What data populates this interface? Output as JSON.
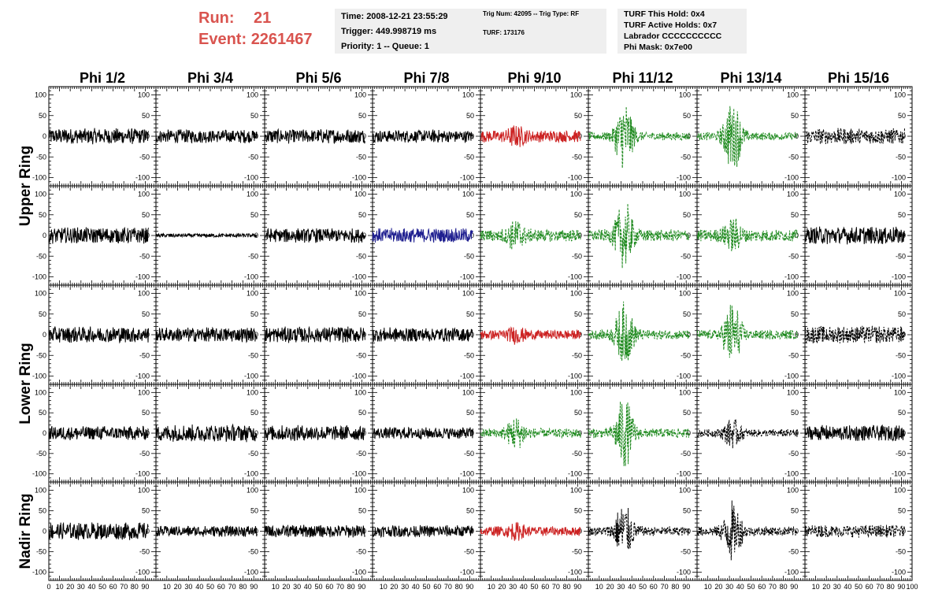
{
  "header": {
    "run_label": "Run:",
    "run_value": "21",
    "event_label": "Event:",
    "event_value": "2261467",
    "time": "Time: 2008-12-21 23:55:29",
    "trigger": "Trigger: 449.998719 ms",
    "priority": "Priority: 1 -- Queue: 1",
    "trig_num": "Trig Num: 42095 -- Trig Type: RF",
    "turf": "TURF: 173176",
    "turf_hold": "TURF This Hold: 0x4",
    "turf_active": "TURF Active Holds: 0x7",
    "labrador": "Labrador CCCCCCCCCC",
    "phi_mask": "Phi Mask: 0x7e00"
  },
  "colors": {
    "title_red": "#d9544f",
    "trace_black": "#000000",
    "trace_red": "#cc2222",
    "trace_blue": "#202090",
    "trace_green": "#1f8a1f",
    "info_bg": "#efefef"
  },
  "chart_data": {
    "type": "line",
    "columns": [
      "Phi 1/2",
      "Phi 3/4",
      "Phi 5/6",
      "Phi 7/8",
      "Phi 9/10",
      "Phi 11/12",
      "Phi 13/14",
      "Phi 15/16"
    ],
    "rows": [
      "Upper Ring",
      "Upper Ring",
      "Lower Ring",
      "Lower Ring",
      "Nadir Ring"
    ],
    "row_groups": [
      {
        "label": "Upper Ring",
        "rows": [
          0,
          1
        ]
      },
      {
        "label": "Lower Ring",
        "rows": [
          2,
          3
        ]
      },
      {
        "label": "Nadir Ring",
        "rows": [
          4
        ]
      }
    ],
    "xlim": [
      0,
      100
    ],
    "ylim": [
      -120,
      120
    ],
    "x_ticks": [
      0,
      10,
      20,
      30,
      40,
      50,
      60,
      70,
      80,
      90,
      100
    ],
    "x_tick_labels": [
      "0",
      "10",
      "20",
      "30",
      "40",
      "50",
      "60",
      "70",
      "80",
      "90",
      "100"
    ],
    "y_ticks": [
      -100,
      -50,
      0,
      50,
      100
    ],
    "y_tick_labels": [
      "-100",
      "-50",
      "0",
      "50",
      "100"
    ],
    "x_data_range": [
      0,
      93
    ],
    "panels": [
      [
        {
          "style": "black",
          "amp": 20,
          "pulse": 0,
          "center": 0
        },
        {
          "style": "black",
          "amp": 17,
          "pulse": 0,
          "center": 0
        },
        {
          "style": "black",
          "amp": 18,
          "pulse": 0,
          "center": 0
        },
        {
          "style": "black",
          "amp": 16,
          "pulse": 0,
          "center": 0
        },
        {
          "style": "red",
          "amp": 15,
          "pulse": 32,
          "center": 33
        },
        {
          "style": "green",
          "amp": 10,
          "pulse": 90,
          "center": 33
        },
        {
          "style": "green",
          "amp": 10,
          "pulse": 95,
          "center": 33
        },
        {
          "style": "black-dashed",
          "amp": 20,
          "pulse": 0,
          "center": 0
        }
      ],
      [
        {
          "style": "black",
          "amp": 20,
          "pulse": 0,
          "center": 0
        },
        {
          "style": "black",
          "amp": 5,
          "pulse": 0,
          "center": 0
        },
        {
          "style": "black",
          "amp": 18,
          "pulse": 0,
          "center": 0
        },
        {
          "style": "blue",
          "amp": 18,
          "pulse": 20,
          "center": 30
        },
        {
          "style": "green",
          "amp": 15,
          "pulse": 45,
          "center": 33
        },
        {
          "style": "green",
          "amp": 15,
          "pulse": 90,
          "center": 33
        },
        {
          "style": "green",
          "amp": 15,
          "pulse": 50,
          "center": 33
        },
        {
          "style": "black",
          "amp": 22,
          "pulse": 0,
          "center": 0
        }
      ],
      [
        {
          "style": "black",
          "amp": 20,
          "pulse": 0,
          "center": 0
        },
        {
          "style": "black",
          "amp": 18,
          "pulse": 0,
          "center": 0
        },
        {
          "style": "black",
          "amp": 20,
          "pulse": 0,
          "center": 0
        },
        {
          "style": "black",
          "amp": 18,
          "pulse": 0,
          "center": 0
        },
        {
          "style": "red",
          "amp": 12,
          "pulse": 25,
          "center": 33
        },
        {
          "style": "green",
          "amp": 12,
          "pulse": 85,
          "center": 33
        },
        {
          "style": "green",
          "amp": 12,
          "pulse": 85,
          "center": 33
        },
        {
          "style": "black-dashed",
          "amp": 22,
          "pulse": 0,
          "center": 0
        }
      ],
      [
        {
          "style": "black",
          "amp": 18,
          "pulse": 0,
          "center": 0
        },
        {
          "style": "black",
          "amp": 22,
          "pulse": 0,
          "center": 0
        },
        {
          "style": "black",
          "amp": 20,
          "pulse": 0,
          "center": 0
        },
        {
          "style": "black",
          "amp": 15,
          "pulse": 0,
          "center": 0
        },
        {
          "style": "green",
          "amp": 12,
          "pulse": 45,
          "center": 33
        },
        {
          "style": "green",
          "amp": 12,
          "pulse": 95,
          "center": 33
        },
        {
          "style": "black-dashed",
          "amp": 10,
          "pulse": 40,
          "center": 33
        },
        {
          "style": "black",
          "amp": 20,
          "pulse": 0,
          "center": 0
        }
      ],
      [
        {
          "style": "black",
          "amp": 22,
          "pulse": 0,
          "center": 0
        },
        {
          "style": "black",
          "amp": 14,
          "pulse": 0,
          "center": 0
        },
        {
          "style": "black",
          "amp": 16,
          "pulse": 0,
          "center": 0
        },
        {
          "style": "black",
          "amp": 15,
          "pulse": 0,
          "center": 0
        },
        {
          "style": "red",
          "amp": 12,
          "pulse": 25,
          "center": 33
        },
        {
          "style": "black-dashed",
          "amp": 12,
          "pulse": 80,
          "center": 33
        },
        {
          "style": "black-dashed",
          "amp": 12,
          "pulse": 80,
          "center": 33
        },
        {
          "style": "black-dashed",
          "amp": 16,
          "pulse": 0,
          "center": 0
        }
      ]
    ]
  }
}
